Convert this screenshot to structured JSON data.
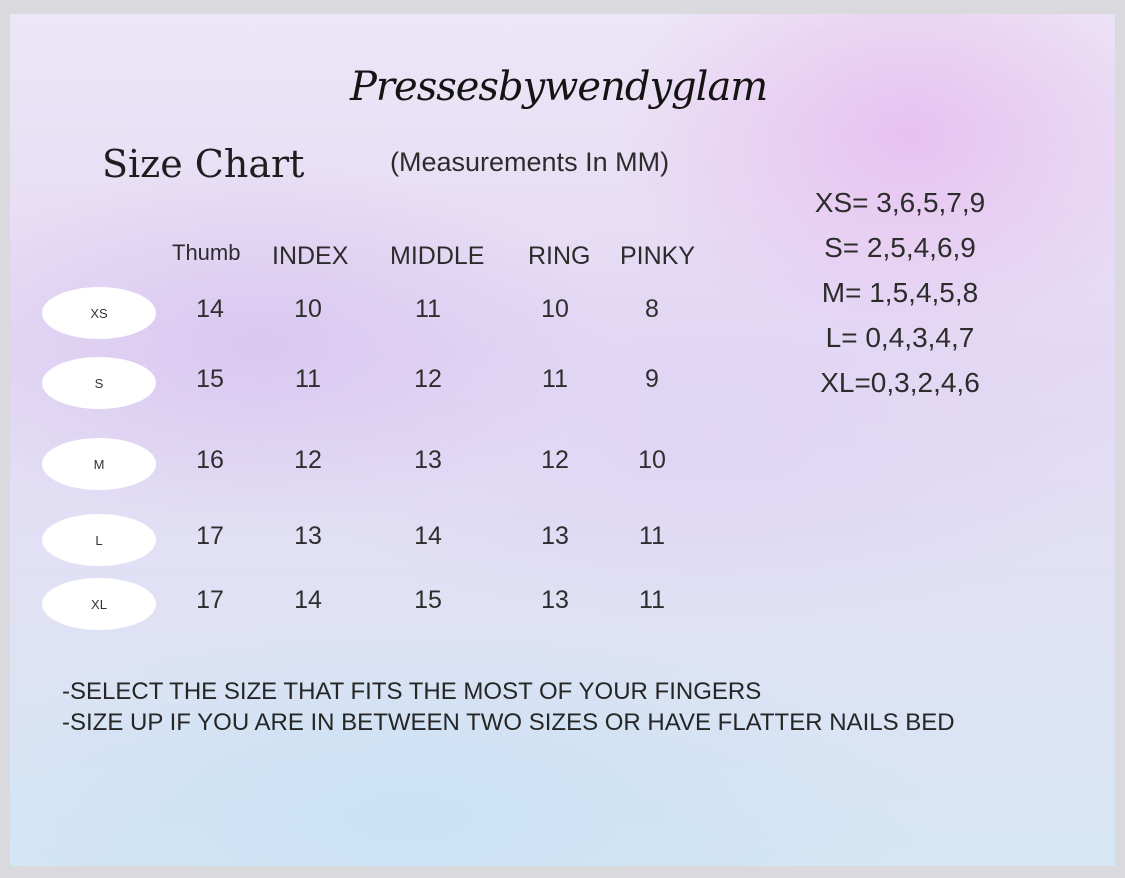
{
  "brand": "Pressesbywendyglam",
  "title": "Size Chart",
  "subtitle": "(Measurements In MM)",
  "columns": [
    "Thumb",
    "INDEX",
    "MIDDLE",
    "RING",
    "PINKY"
  ],
  "rows": [
    {
      "size": "XS",
      "values": [
        "14",
        "10",
        "11",
        "10",
        "8"
      ]
    },
    {
      "size": "S",
      "values": [
        "15",
        "11",
        "12",
        "11",
        "9"
      ]
    },
    {
      "size": "M",
      "values": [
        "16",
        "12",
        "13",
        "12",
        "10"
      ]
    },
    {
      "size": "L",
      "values": [
        "17",
        "13",
        "14",
        "13",
        "11"
      ]
    },
    {
      "size": "XL",
      "values": [
        "17",
        "14",
        "15",
        "13",
        "11"
      ]
    }
  ],
  "size_codes": [
    "XS= 3,6,5,7,9",
    "S= 2,5,4,6,9",
    "M= 1,5,4,5,8",
    "L= 0,4,3,4,7",
    "XL=0,3,2,4,6"
  ],
  "notes": [
    "-SELECT THE SIZE THAT FITS THE  MOST OF YOUR FINGERS",
    "-SIZE UP IF YOU ARE IN BETWEEN TWO SIZES OR HAVE  FLATTER NAILS BED"
  ],
  "colors": {
    "text": "#2a2a2e",
    "pill": "#ffffff",
    "pink": "#e8bef0",
    "blue": "#c8e1f5"
  }
}
